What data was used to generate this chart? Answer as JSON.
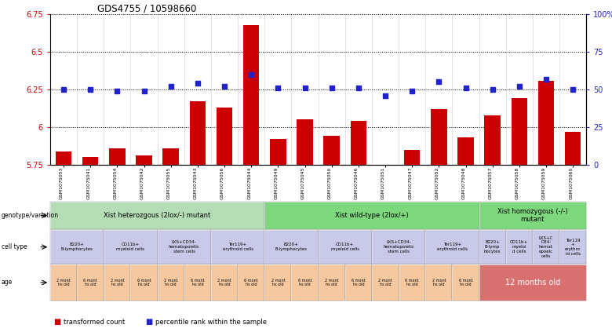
{
  "title": "GDS4755 / 10598660",
  "samples": [
    "GSM1075053",
    "GSM1075041",
    "GSM1075054",
    "GSM1075042",
    "GSM1075055",
    "GSM1075043",
    "GSM1075056",
    "GSM1075044",
    "GSM1075049",
    "GSM1075045",
    "GSM1075050",
    "GSM1075046",
    "GSM1075051",
    "GSM1075047",
    "GSM1075052",
    "GSM1075048",
    "GSM1075057",
    "GSM1075058",
    "GSM1075059",
    "GSM1075060"
  ],
  "red_values": [
    5.84,
    5.8,
    5.86,
    5.81,
    5.86,
    6.17,
    6.13,
    6.68,
    5.92,
    6.05,
    5.94,
    6.04,
    5.74,
    5.85,
    6.12,
    5.93,
    6.08,
    6.19,
    6.31,
    5.97
  ],
  "blue_values": [
    6.25,
    6.25,
    6.24,
    6.24,
    6.27,
    6.29,
    6.27,
    6.35,
    6.26,
    6.26,
    6.26,
    6.26,
    6.21,
    6.24,
    6.3,
    6.26,
    6.25,
    6.27,
    6.32,
    6.25
  ],
  "ymin": 5.75,
  "ymax": 6.75,
  "yticks": [
    5.75,
    6.0,
    6.25,
    6.5,
    6.75
  ],
  "ytick_labels": [
    "5.75",
    "6",
    "6.25",
    "6.5",
    "6.75"
  ],
  "y2ticks": [
    0,
    25,
    50,
    75,
    100
  ],
  "y2tick_labels": [
    "0",
    "25",
    "50",
    "75",
    "100%"
  ],
  "genotype_groups": [
    {
      "label": "Xist heterozgous (2lox/-) mutant",
      "start": 0,
      "end": 8,
      "color": "#b5ddb5"
    },
    {
      "label": "Xist wild-type (2lox/+)",
      "start": 8,
      "end": 16,
      "color": "#7dd87d"
    },
    {
      "label": "Xist homozygous (-/-)\nmutant",
      "start": 16,
      "end": 20,
      "color": "#7dd87d"
    }
  ],
  "cell_type_groups": [
    {
      "label": "B220+\nB-lymphocytes",
      "start": 0,
      "end": 2,
      "color": "#c8c8e8"
    },
    {
      "label": "CD11b+\nmyeloid cells",
      "start": 2,
      "end": 4,
      "color": "#c8c8e8"
    },
    {
      "label": "LKS+CD34-\nhematopoietic\nstem cells",
      "start": 4,
      "end": 6,
      "color": "#c8c8e8"
    },
    {
      "label": "Ter119+\nerythroid cells",
      "start": 6,
      "end": 8,
      "color": "#c8c8e8"
    },
    {
      "label": "B220+\nB-lymphocytes",
      "start": 8,
      "end": 10,
      "color": "#c8c8e8"
    },
    {
      "label": "CD11b+\nmyeloid cells",
      "start": 10,
      "end": 12,
      "color": "#c8c8e8"
    },
    {
      "label": "LKS+CD34-\nhematopoietic\nstem cells",
      "start": 12,
      "end": 14,
      "color": "#c8c8e8"
    },
    {
      "label": "Ter119+\nerythroid cells",
      "start": 14,
      "end": 16,
      "color": "#c8c8e8"
    },
    {
      "label": "B220+\nB-lymp\nhocytes",
      "start": 16,
      "end": 17,
      "color": "#c8c8e8"
    },
    {
      "label": "CD11b+\nmyeloi\nd cells",
      "start": 17,
      "end": 18,
      "color": "#c8c8e8"
    },
    {
      "label": "LKS+C\nD34-\nhemat\nopoeic\ncells",
      "start": 18,
      "end": 19,
      "color": "#c8c8e8"
    },
    {
      "label": "Ter119\n+\nerythro\nid cells",
      "start": 19,
      "end": 20,
      "color": "#c8c8e8"
    }
  ],
  "age_groups_left": [
    {
      "label": "2 mont\nhs old",
      "start": 0,
      "end": 1
    },
    {
      "label": "6 mont\nhs old",
      "start": 1,
      "end": 2
    },
    {
      "label": "2 mont\nhs old",
      "start": 2,
      "end": 3
    },
    {
      "label": "6 mont\nhs old",
      "start": 3,
      "end": 4
    },
    {
      "label": "2 mont\nhs old",
      "start": 4,
      "end": 5
    },
    {
      "label": "6 mont\nhs old",
      "start": 5,
      "end": 6
    },
    {
      "label": "2 mont\nhs old",
      "start": 6,
      "end": 7
    },
    {
      "label": "6 mont\nhs old",
      "start": 7,
      "end": 8
    },
    {
      "label": "2 mont\nhs old",
      "start": 8,
      "end": 9
    },
    {
      "label": "6 mont\nhs old",
      "start": 9,
      "end": 10
    },
    {
      "label": "2 mont\nhs old",
      "start": 10,
      "end": 11
    },
    {
      "label": "6 mont\nhs old",
      "start": 11,
      "end": 12
    },
    {
      "label": "2 mont\nhs old",
      "start": 12,
      "end": 13
    },
    {
      "label": "6 mont\nhs old",
      "start": 13,
      "end": 14
    },
    {
      "label": "2 mont\nhs old",
      "start": 14,
      "end": 15
    },
    {
      "label": "6 mont\nhs old",
      "start": 15,
      "end": 16
    }
  ],
  "age_color_left": "#f5c8a0",
  "age_group_right": {
    "label": "12 months old",
    "start": 16,
    "end": 20,
    "color": "#d97070"
  },
  "bar_color": "#cc0000",
  "dot_color": "#2222cc",
  "background_color": "#ffffff",
  "axis_color_left": "#cc0000",
  "axis_color_right": "#2222cc",
  "label_left_genotype": "genotype/variation",
  "label_left_celltype": "cell type",
  "label_left_age": "age",
  "legend_bar": "transformed count",
  "legend_dot": "percentile rank within the sample"
}
